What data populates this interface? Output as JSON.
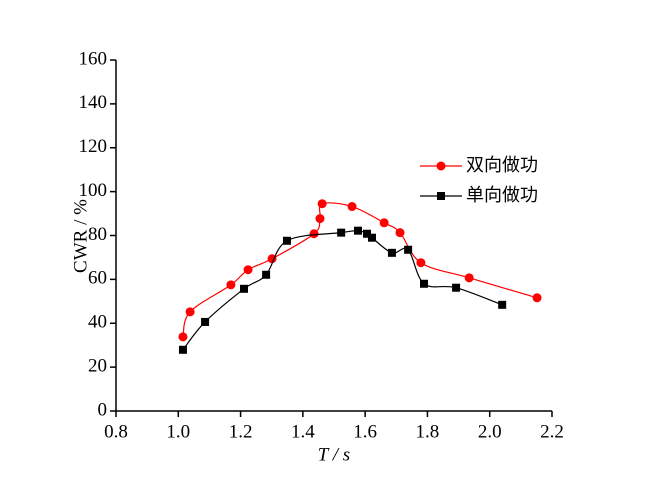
{
  "chart_data": {
    "type": "line",
    "x_label": "T / s",
    "y_label": "CWR / %",
    "xlim": [
      0.8,
      2.2
    ],
    "ylim": [
      0,
      160
    ],
    "xticks": [
      {
        "value": 0.8,
        "label": "0.8"
      },
      {
        "value": 1.0,
        "label": "1.0"
      },
      {
        "value": 1.2,
        "label": "1.2"
      },
      {
        "value": 1.4,
        "label": "1.4"
      },
      {
        "value": 1.6,
        "label": "1.6"
      },
      {
        "value": 1.8,
        "label": "1.8"
      },
      {
        "value": 2.0,
        "label": "2.0"
      },
      {
        "value": 2.2,
        "label": "2.2"
      }
    ],
    "yticks": [
      0,
      20,
      40,
      60,
      80,
      100,
      120,
      140,
      160
    ],
    "series": [
      {
        "name": "双向做功",
        "color": "#ff0000",
        "marker": "circle",
        "x": [
          1.015,
          1.038,
          1.169,
          1.224,
          1.301,
          1.436,
          1.455,
          1.462,
          1.558,
          1.661,
          1.712,
          1.779,
          1.934,
          2.152
        ],
        "values": [
          33.8,
          45.2,
          57.5,
          64.4,
          69.4,
          80.8,
          87.7,
          94.5,
          93.2,
          85.8,
          81.3,
          67.6,
          60.7,
          51.6
        ]
      },
      {
        "name": "单向做功",
        "color": "#000000",
        "marker": "square",
        "x": [
          1.015,
          1.086,
          1.211,
          1.282,
          1.349,
          1.523,
          1.577,
          1.606,
          1.622,
          1.686,
          1.738,
          1.789,
          1.892,
          2.04
        ],
        "values": [
          27.9,
          40.6,
          55.7,
          62.1,
          77.6,
          81.3,
          82.2,
          80.8,
          79.0,
          72.1,
          73.5,
          58.0,
          56.2,
          48.4
        ]
      }
    ]
  }
}
